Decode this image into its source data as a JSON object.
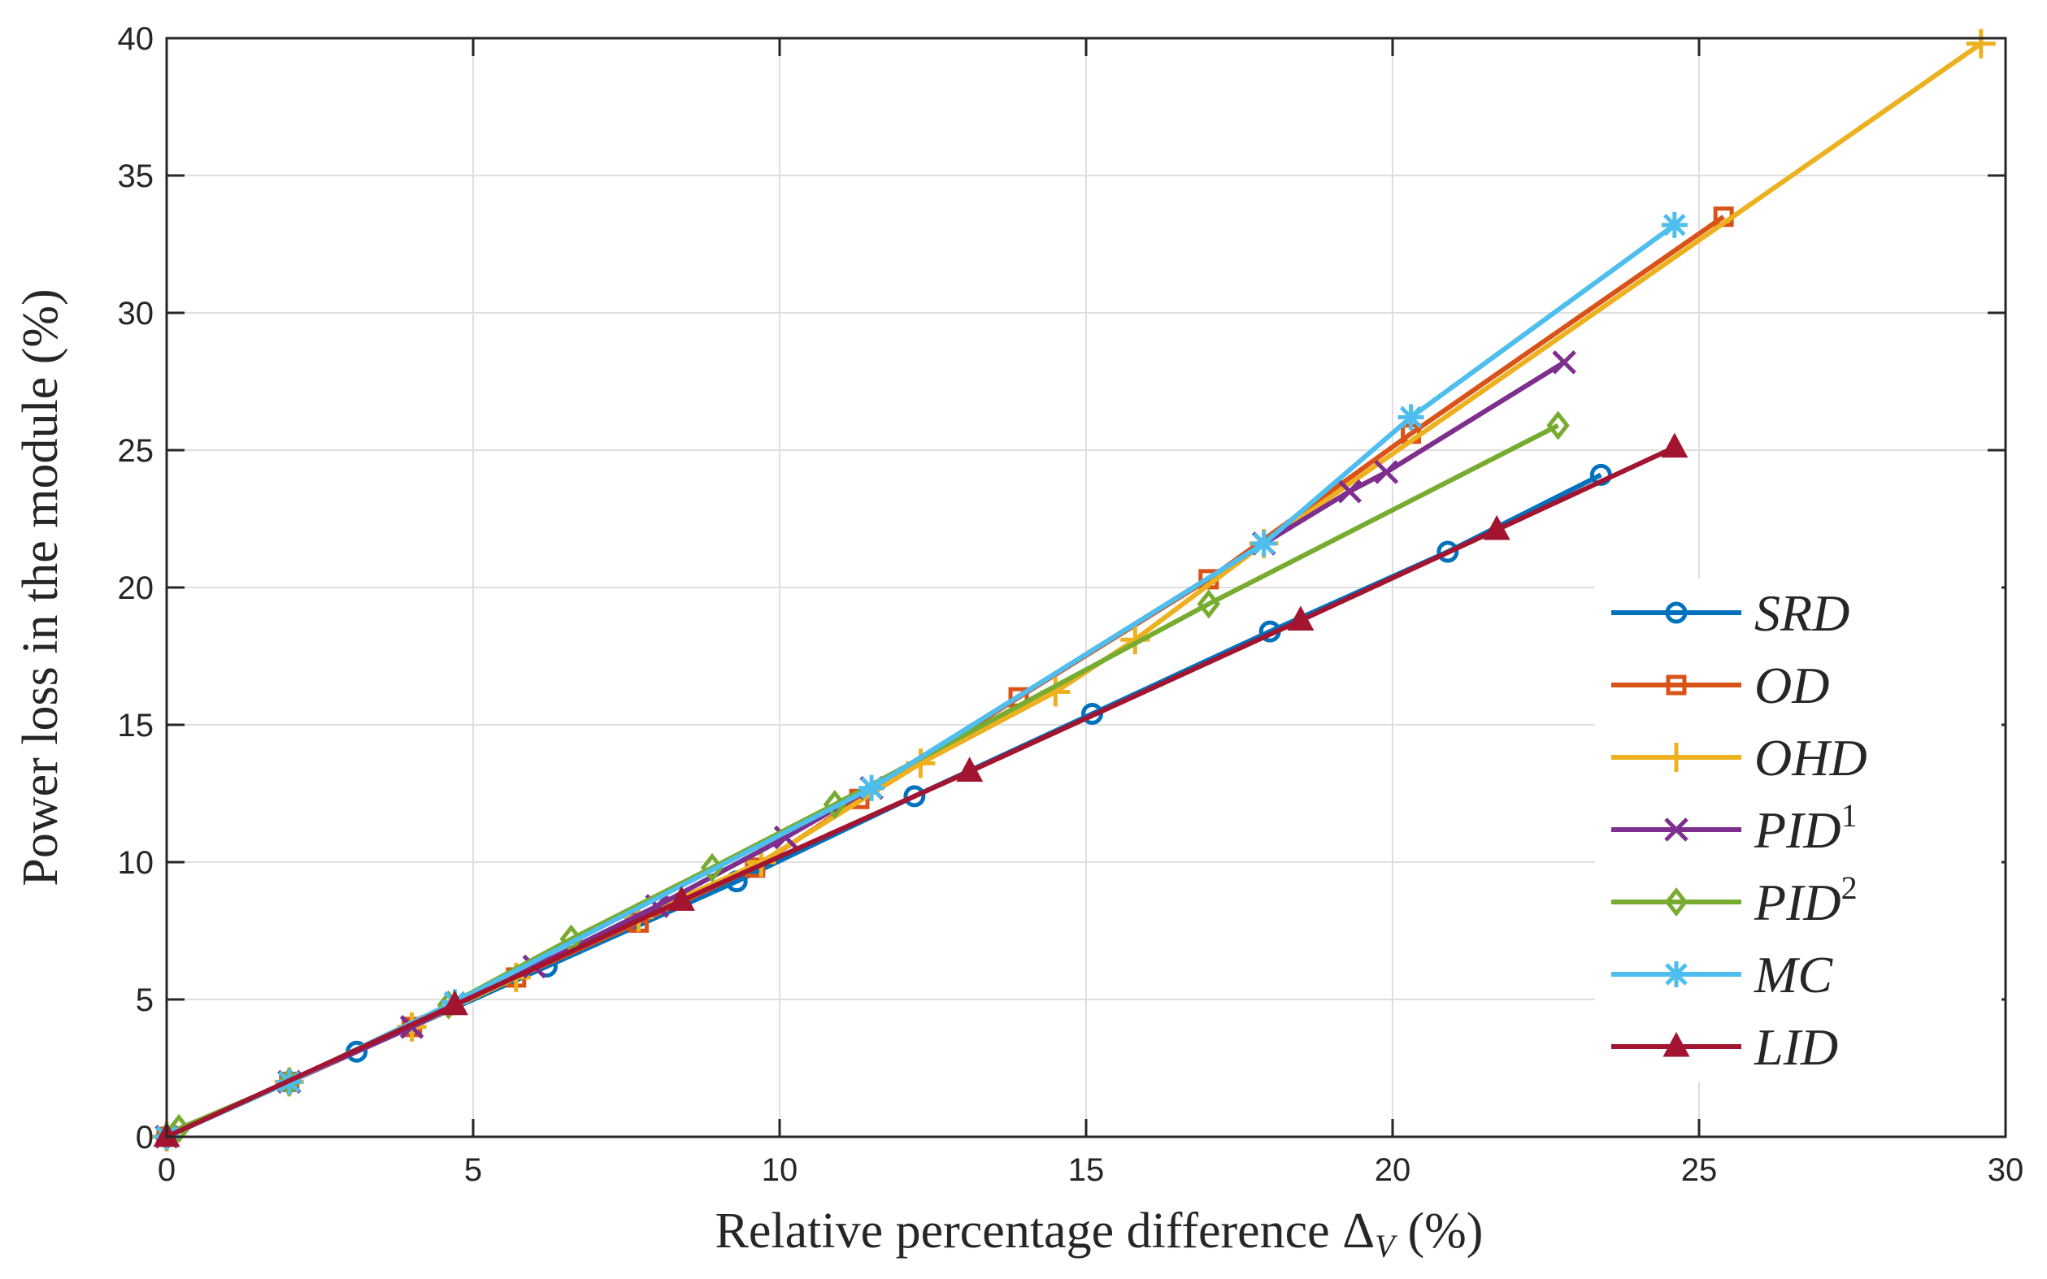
{
  "chart_data": {
    "type": "line",
    "title": "",
    "xlabel": "Relative percentage difference",
    "xlabel_symbol": "Δ",
    "xlabel_subscript": "V",
    "xlabel_unit": "(%)",
    "ylabel": "Power loss in the module (%)",
    "xlim": [
      0,
      30
    ],
    "ylim": [
      0,
      40
    ],
    "xticks": [
      0,
      5,
      10,
      15,
      20,
      25,
      30
    ],
    "yticks": [
      0,
      5,
      10,
      15,
      20,
      25,
      30,
      35,
      40
    ],
    "grid": true,
    "legend_position": "bottom-right",
    "series": [
      {
        "name": "SRD",
        "sup": "",
        "color": "#0072BD",
        "marker": "circle",
        "x": [
          0,
          3.1,
          6.2,
          9.3,
          12.2,
          15.1,
          18.0,
          20.9,
          23.4
        ],
        "y": [
          0,
          3.1,
          6.2,
          9.3,
          12.4,
          15.4,
          18.4,
          21.3,
          24.1
        ]
      },
      {
        "name": "OD",
        "sup": "",
        "color": "#D95319",
        "marker": "square",
        "x": [
          0,
          2.0,
          4.0,
          5.7,
          7.7,
          9.6,
          11.3,
          13.9,
          17.0,
          20.3,
          25.4
        ],
        "y": [
          0,
          2.0,
          4.0,
          5.8,
          7.8,
          9.8,
          12.3,
          16.0,
          20.3,
          25.6,
          33.5
        ]
      },
      {
        "name": "OHD",
        "sup": "",
        "color": "#EDB120",
        "marker": "plus",
        "x": [
          0,
          2.0,
          4.0,
          5.7,
          7.7,
          9.7,
          12.3,
          14.5,
          15.8,
          17.9,
          29.6
        ],
        "y": [
          0,
          2.0,
          4.0,
          5.8,
          8.0,
          10.0,
          13.6,
          16.2,
          18.1,
          21.6,
          39.8
        ]
      },
      {
        "name": "PID",
        "sup": "1",
        "color": "#7E2F8E",
        "marker": "x",
        "x": [
          0,
          2.0,
          4.0,
          6.0,
          8.0,
          10.1,
          11.5,
          17.9,
          19.3,
          19.9,
          22.8
        ],
        "y": [
          0,
          2.0,
          4.0,
          6.2,
          8.4,
          10.9,
          12.7,
          21.6,
          23.5,
          24.2,
          28.2
        ]
      },
      {
        "name": "PID",
        "sup": "2",
        "color": "#77AC30",
        "marker": "diamond",
        "x": [
          0,
          0.2,
          2.0,
          4.6,
          6.6,
          8.9,
          10.9,
          17.0,
          22.7
        ],
        "y": [
          0,
          0.3,
          2.0,
          4.8,
          7.2,
          9.8,
          12.1,
          19.4,
          25.9
        ]
      },
      {
        "name": "MC",
        "sup": "",
        "color": "#4DBEEE",
        "marker": "asterisk",
        "x": [
          0,
          2.0,
          4.7,
          11.5,
          17.9,
          20.3,
          24.6
        ],
        "y": [
          0,
          2.0,
          4.9,
          12.7,
          21.6,
          26.2,
          33.2
        ]
      },
      {
        "name": "LID",
        "sup": "",
        "color": "#A2142F",
        "marker": "triangle",
        "x": [
          0,
          4.7,
          8.4,
          13.1,
          18.5,
          21.7,
          24.6
        ],
        "y": [
          0,
          4.8,
          8.6,
          13.3,
          18.8,
          22.1,
          25.1
        ]
      }
    ]
  }
}
